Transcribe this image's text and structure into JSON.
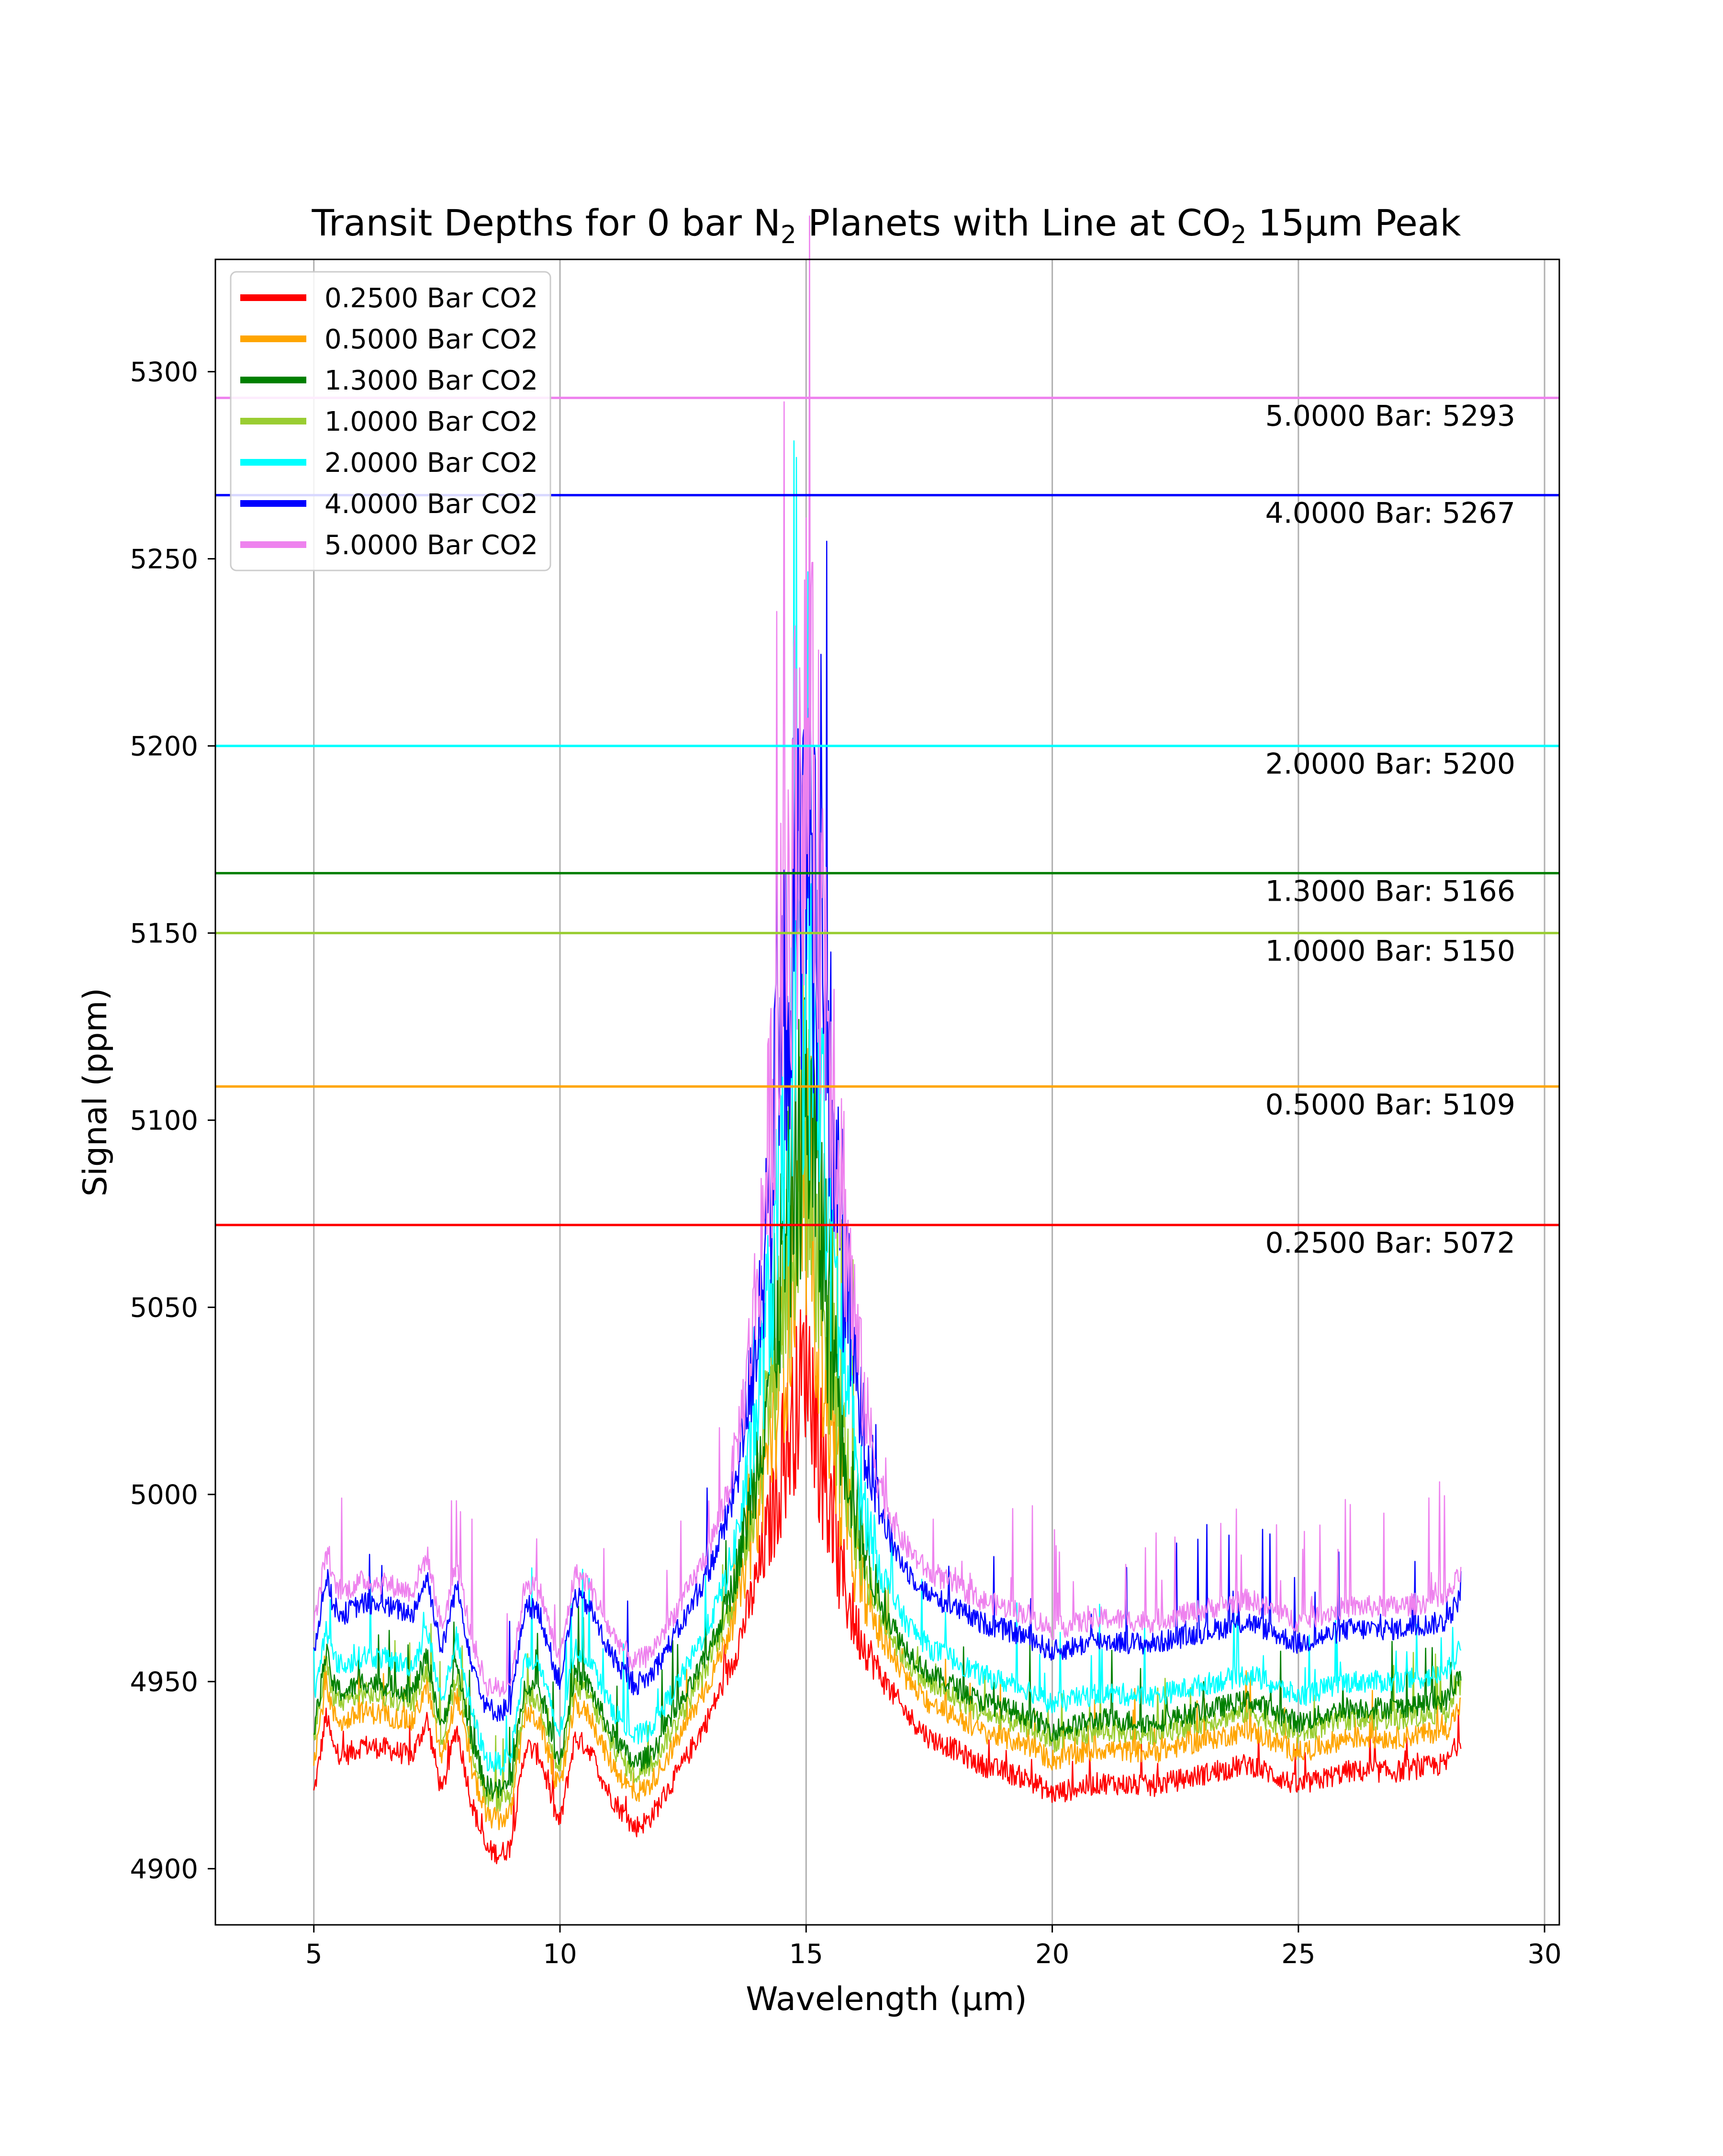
{
  "chart_data": {
    "type": "line",
    "title_parts": {
      "pre": "Transit Depths for 0 bar N",
      "sub1": "2",
      "mid": " Planets with Line at CO",
      "sub2": "2",
      "post": " 15μm Peak"
    },
    "xlabel": "Wavelength (μm)",
    "ylabel": "Signal (ppm)",
    "xlim": [
      3,
      30.3
    ],
    "ylim": [
      4885,
      5330
    ],
    "xticks": [
      "5",
      "10",
      "15",
      "20",
      "25",
      "30"
    ],
    "yticks": [
      "4900",
      "4950",
      "5000",
      "5050",
      "5100",
      "5150",
      "5200",
      "5250",
      "5300"
    ],
    "grid": "vertical",
    "legend_position": "top-left",
    "series": [
      {
        "name": "0.2500 Bar CO2",
        "color": "#ff0000",
        "pressure": 0.25,
        "peak_line": 5072,
        "annotation": "0.2500 Bar: 5072"
      },
      {
        "name": "0.5000 Bar CO2",
        "color": "#ffa500",
        "pressure": 0.5,
        "peak_line": 5109,
        "annotation": "0.5000 Bar: 5109"
      },
      {
        "name": "1.3000 Bar CO2",
        "color": "#008000",
        "pressure": 1.3,
        "peak_line": 5166,
        "annotation": "1.3000 Bar: 5166"
      },
      {
        "name": "1.0000 Bar CO2",
        "color": "#9acd32",
        "pressure": 1.0,
        "peak_line": 5150,
        "annotation": "1.0000 Bar: 5150"
      },
      {
        "name": "2.0000 Bar CO2",
        "color": "#00ffff",
        "pressure": 2.0,
        "peak_line": 5200,
        "annotation": "2.0000 Bar: 5200"
      },
      {
        "name": "4.0000 Bar CO2",
        "color": "#0000ff",
        "pressure": 4.0,
        "peak_line": 5267,
        "annotation": "4.0000 Bar: 5267"
      },
      {
        "name": "5.0000 Bar CO2",
        "color": "#ee82ee",
        "pressure": 5.0,
        "peak_line": 5293,
        "annotation": "5.0000 Bar: 5293"
      }
    ],
    "spectrum_baseline": {
      "x": [
        5.0,
        5.1,
        5.25,
        5.4,
        5.6,
        6.0,
        6.5,
        7.0,
        7.3,
        7.6,
        7.9,
        8.2,
        8.5,
        8.8,
        9.0,
        9.3,
        9.6,
        9.9,
        10.0,
        10.3,
        10.6,
        11.0,
        11.5,
        11.8,
        12.0,
        12.5,
        13.0,
        13.5,
        14.0,
        14.4,
        14.7,
        14.9,
        15.0,
        15.1,
        15.3,
        15.6,
        16.0,
        16.5,
        17.0,
        17.5,
        18.0,
        18.5,
        19.0,
        19.5,
        20.0,
        21.0,
        22.0,
        23.0,
        24.0,
        25.0,
        26.0,
        27.0,
        28.0,
        28.3
      ],
      "y_0_25bar": [
        4920,
        4928,
        4941,
        4932,
        4930,
        4933,
        4932,
        4930,
        4940,
        4920,
        4938,
        4918,
        4905,
        4904,
        4906,
        4933,
        4930,
        4915,
        4912,
        4935,
        4932,
        4920,
        4911,
        4913,
        4917,
        4928,
        4940,
        4955,
        4977,
        5000,
        5018,
        5030,
        5038,
        5030,
        5010,
        4985,
        4965,
        4952,
        4942,
        4935,
        4932,
        4928,
        4926,
        4924,
        4920,
        4923,
        4922,
        4925,
        4928,
        4922,
        4926,
        4926,
        4928,
        4935
      ]
    },
    "spectrum_offsets_ppm": [
      0,
      9,
      17,
      14,
      24,
      38,
      44
    ],
    "spectrum_peak_scale": [
      1.0,
      1.45,
      1.85,
      1.7,
      2.2,
      2.7,
      3.0
    ]
  }
}
